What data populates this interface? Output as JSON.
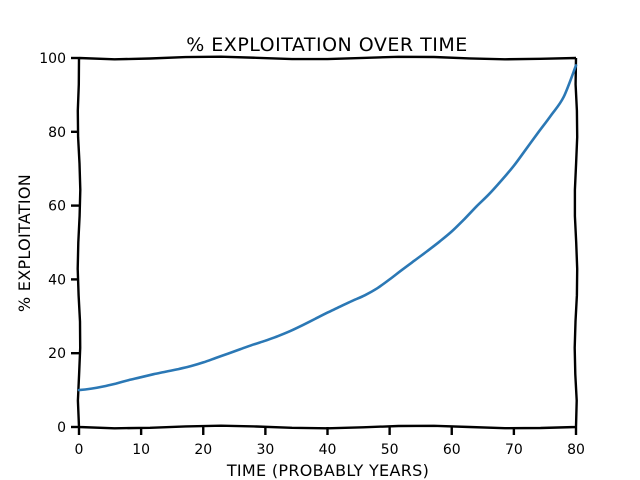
{
  "chart_data": {
    "type": "line",
    "title": "% EXPLOITATION OVER TIME",
    "xlabel": "TIME (PROBABLY YEARS)",
    "ylabel": "% EXPLOITATION",
    "xlim": [
      0,
      80
    ],
    "ylim": [
      0,
      100
    ],
    "xticks": [
      0,
      10,
      20,
      30,
      40,
      50,
      60,
      70,
      80
    ],
    "yticks": [
      0,
      20,
      40,
      60,
      80,
      100
    ],
    "grid": false,
    "series": [
      {
        "color": "#2b78b5",
        "x": [
          0,
          2,
          4,
          6,
          8,
          10,
          12,
          14,
          16,
          18,
          20,
          22,
          24,
          26,
          28,
          30,
          32,
          34,
          36,
          38,
          40,
          42,
          44,
          46,
          48,
          50,
          52,
          54,
          56,
          58,
          60,
          62,
          64,
          66,
          68,
          70,
          72,
          74,
          76,
          78,
          80
        ],
        "y": [
          10.0,
          10.4,
          11.0,
          11.8,
          12.7,
          13.5,
          14.3,
          15.0,
          15.7,
          16.5,
          17.5,
          18.7,
          19.9,
          21.1,
          22.3,
          23.4,
          24.6,
          26.0,
          27.6,
          29.3,
          31.0,
          32.6,
          34.2,
          35.7,
          37.6,
          40.0,
          42.6,
          45.1,
          47.6,
          50.2,
          53.0,
          56.3,
          59.8,
          63.1,
          66.8,
          70.8,
          75.4,
          80.0,
          84.5,
          89.4,
          98.0
        ]
      }
    ]
  }
}
